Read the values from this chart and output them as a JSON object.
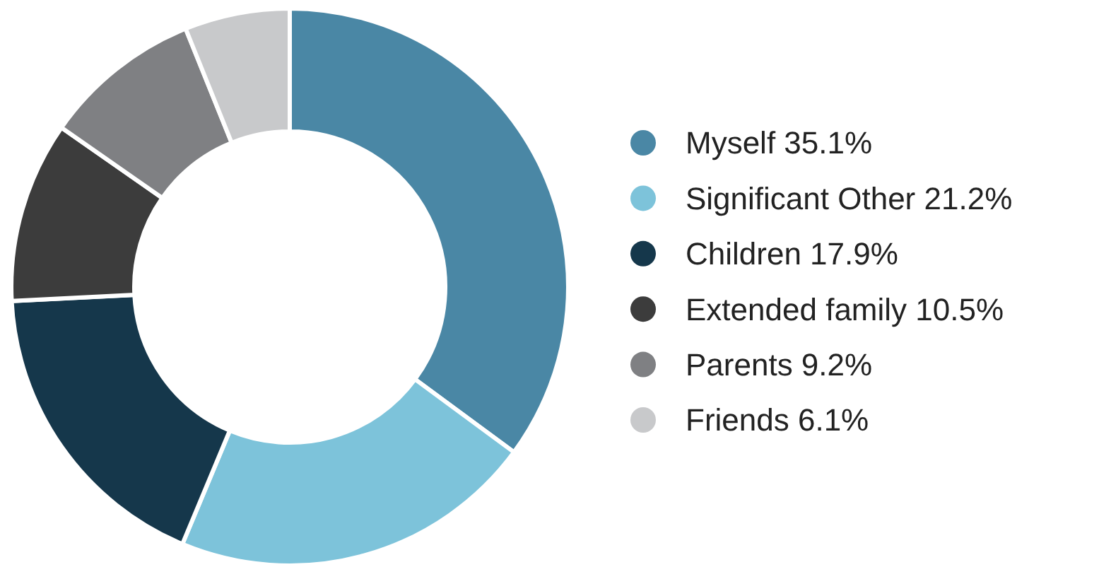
{
  "chart_data": {
    "type": "donut",
    "categories": [
      "Myself",
      "Significant Other",
      "Children",
      "Extended family",
      "Parents",
      "Friends"
    ],
    "values": [
      35.1,
      21.2,
      17.9,
      10.5,
      9.2,
      6.1
    ],
    "value_labels": [
      "35.1%",
      "21.2%",
      "17.9%",
      "10.5%",
      "9.2%",
      "6.1%"
    ],
    "colors": [
      "#4a87a5",
      "#7dc3da",
      "#15374b",
      "#3c3c3c",
      "#7f8083",
      "#c8c9cb"
    ],
    "legend": "right"
  }
}
